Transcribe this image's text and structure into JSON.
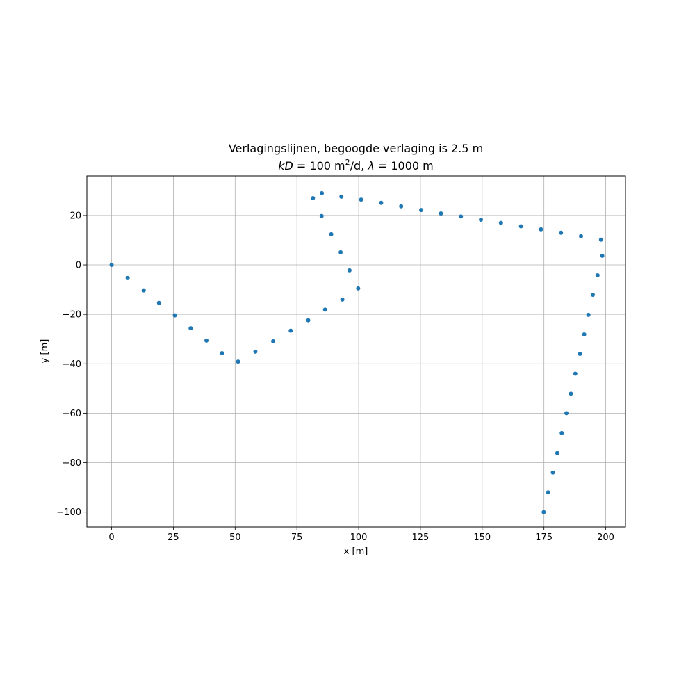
{
  "chart_data": {
    "type": "scatter",
    "title": "Verlagingslijnen, begoogde verlaging is 2.5 m",
    "subtitle": {
      "lead": "kD",
      "eq1": " = 100 m",
      "sup": "2",
      "mid": "/d, ",
      "lambda": "λ",
      "eq2": " = 1000 m"
    },
    "xlabel": "x [m]",
    "ylabel": "y [m]",
    "xlim": [
      -10,
      208
    ],
    "ylim": [
      -106,
      36
    ],
    "xticks": [
      0,
      25,
      50,
      75,
      100,
      125,
      150,
      175,
      200
    ],
    "yticks": [
      -100,
      -80,
      -60,
      -40,
      -20,
      0,
      20
    ],
    "grid": true,
    "marker_color": "#1f77b4",
    "series": [
      {
        "points": [
          [
            0,
            0
          ],
          [
            6.5,
            -5.3
          ],
          [
            13,
            -10.3
          ],
          [
            19.2,
            -15.4
          ],
          [
            25.6,
            -20.4
          ],
          [
            32,
            -25.6
          ],
          [
            38.4,
            -30.6
          ],
          [
            44.7,
            -35.7
          ],
          [
            51.2,
            -39.1
          ],
          [
            58.2,
            -35.1
          ],
          [
            65.4,
            -30.9
          ],
          [
            72.5,
            -26.6
          ],
          [
            79.6,
            -22.4
          ],
          [
            86.4,
            -18.1
          ],
          [
            93.4,
            -14.0
          ],
          [
            99.8,
            -9.5
          ],
          [
            96.3,
            -2.2
          ],
          [
            92.7,
            5.1
          ],
          [
            88.9,
            12.4
          ],
          [
            85.0,
            19.8
          ],
          [
            81.5,
            27.0
          ],
          [
            85.1,
            29.0
          ],
          [
            93.0,
            27.6
          ],
          [
            101.0,
            26.4
          ],
          [
            109.1,
            25.1
          ],
          [
            117.2,
            23.7
          ],
          [
            125.3,
            22.2
          ],
          [
            133.3,
            20.8
          ],
          [
            141.4,
            19.6
          ],
          [
            149.5,
            18.3
          ],
          [
            157.6,
            17.0
          ],
          [
            165.7,
            15.6
          ],
          [
            173.8,
            14.4
          ],
          [
            181.9,
            13.0
          ],
          [
            190.0,
            11.6
          ],
          [
            198.1,
            10.2
          ],
          [
            198.6,
            3.7
          ],
          [
            196.7,
            -4.2
          ],
          [
            194.8,
            -12.1
          ],
          [
            193.0,
            -20.2
          ],
          [
            191.3,
            -28.1
          ],
          [
            189.6,
            -36.0
          ],
          [
            187.7,
            -44.0
          ],
          [
            185.9,
            -52.1
          ],
          [
            184.1,
            -60.0
          ],
          [
            182.2,
            -68.0
          ],
          [
            180.4,
            -76.1
          ],
          [
            178.6,
            -84.0
          ],
          [
            176.7,
            -92.0
          ],
          [
            174.9,
            -100.0
          ]
        ]
      }
    ]
  }
}
